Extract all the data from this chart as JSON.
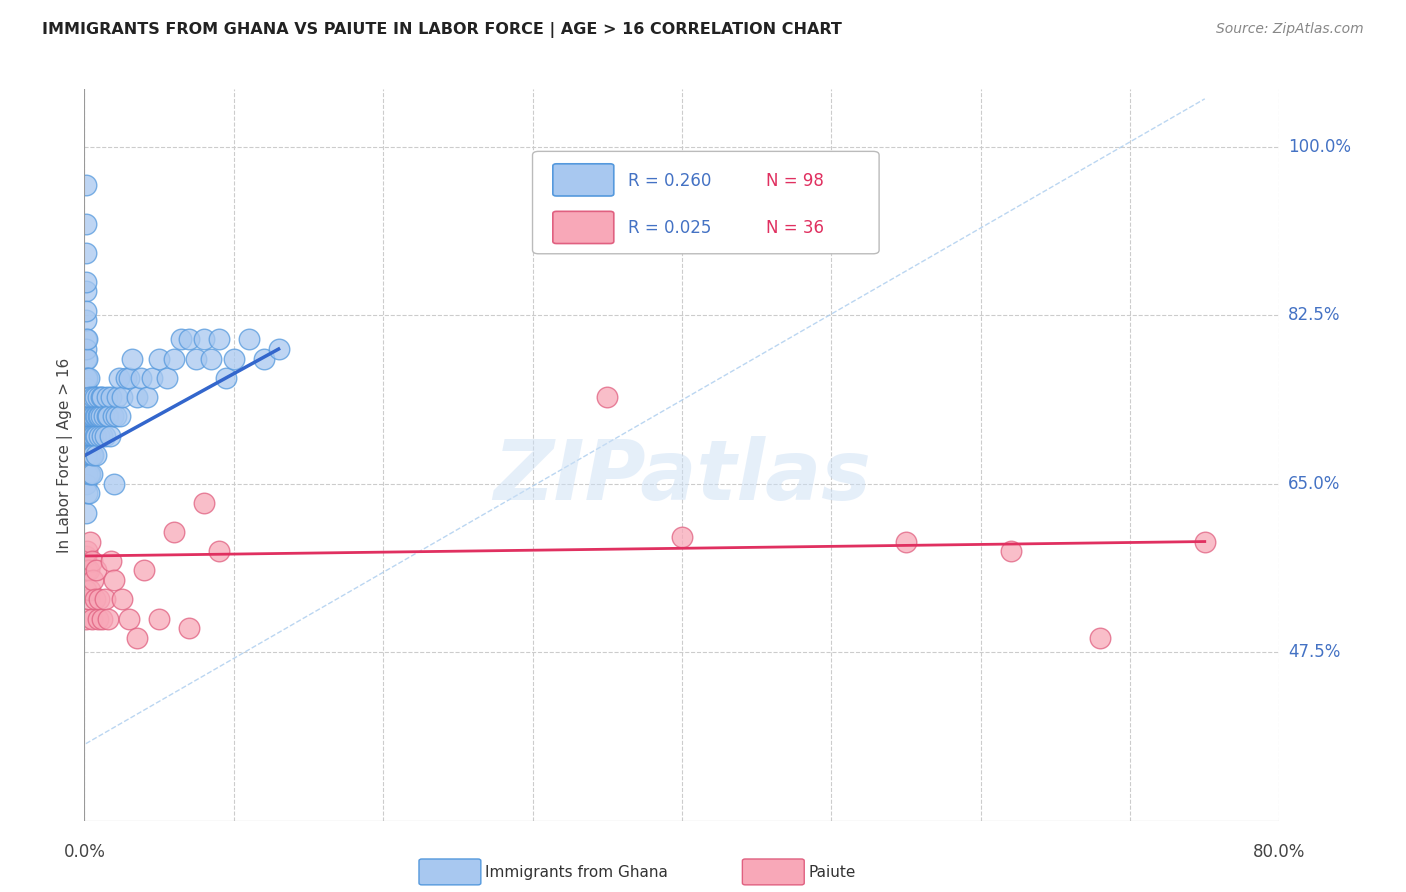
{
  "title": "IMMIGRANTS FROM GHANA VS PAIUTE IN LABOR FORCE | AGE > 16 CORRELATION CHART",
  "source": "Source: ZipAtlas.com",
  "ylabel": "In Labor Force | Age > 16",
  "x_min": 0.0,
  "x_max": 0.8,
  "y_min": 0.3,
  "y_max": 1.06,
  "y_ticks": [
    0.475,
    0.65,
    0.825,
    1.0
  ],
  "y_tick_labels": [
    "47.5%",
    "65.0%",
    "82.5%",
    "100.0%"
  ],
  "x_tick_labels_show": [
    "0.0%",
    "80.0%"
  ],
  "ghana_color": "#a8c8f0",
  "ghana_edge_color": "#5599dd",
  "paiute_color": "#f8a8b8",
  "paiute_edge_color": "#e06080",
  "ghana_line_color": "#3366cc",
  "paiute_line_color": "#e03060",
  "diagonal_color": "#aaccee",
  "watermark": "ZIPatlas",
  "legend_R_ghana": "R = 0.260",
  "legend_N_ghana": "N = 98",
  "legend_R_paiute": "R = 0.025",
  "legend_N_paiute": "N = 36",
  "ghana_label": "Immigrants from Ghana",
  "paiute_label": "Paiute",
  "ghana_scatter_x": [
    0.001,
    0.001,
    0.001,
    0.001,
    0.001,
    0.001,
    0.001,
    0.001,
    0.001,
    0.001,
    0.001,
    0.001,
    0.001,
    0.001,
    0.001,
    0.001,
    0.001,
    0.002,
    0.002,
    0.002,
    0.002,
    0.002,
    0.002,
    0.002,
    0.002,
    0.002,
    0.002,
    0.002,
    0.003,
    0.003,
    0.003,
    0.003,
    0.003,
    0.003,
    0.003,
    0.004,
    0.004,
    0.004,
    0.004,
    0.004,
    0.005,
    0.005,
    0.005,
    0.005,
    0.006,
    0.006,
    0.006,
    0.006,
    0.007,
    0.007,
    0.007,
    0.008,
    0.008,
    0.008,
    0.009,
    0.009,
    0.01,
    0.01,
    0.011,
    0.011,
    0.012,
    0.012,
    0.013,
    0.014,
    0.015,
    0.015,
    0.016,
    0.017,
    0.018,
    0.019,
    0.02,
    0.021,
    0.022,
    0.023,
    0.024,
    0.025,
    0.028,
    0.03,
    0.032,
    0.035,
    0.038,
    0.042,
    0.045,
    0.05,
    0.055,
    0.06,
    0.065,
    0.07,
    0.075,
    0.08,
    0.085,
    0.09,
    0.095,
    0.1,
    0.11,
    0.12,
    0.13,
    0.001
  ],
  "ghana_scatter_y": [
    0.72,
    0.75,
    0.78,
    0.8,
    0.82,
    0.85,
    0.68,
    0.65,
    0.62,
    0.7,
    0.73,
    0.76,
    0.79,
    0.83,
    0.86,
    0.89,
    0.92,
    0.72,
    0.74,
    0.76,
    0.78,
    0.8,
    0.68,
    0.66,
    0.64,
    0.7,
    0.73,
    0.76,
    0.72,
    0.74,
    0.76,
    0.7,
    0.68,
    0.66,
    0.64,
    0.72,
    0.74,
    0.7,
    0.68,
    0.66,
    0.72,
    0.7,
    0.68,
    0.66,
    0.72,
    0.7,
    0.74,
    0.68,
    0.72,
    0.7,
    0.74,
    0.72,
    0.7,
    0.68,
    0.72,
    0.74,
    0.7,
    0.72,
    0.72,
    0.74,
    0.7,
    0.74,
    0.72,
    0.7,
    0.72,
    0.74,
    0.72,
    0.7,
    0.74,
    0.72,
    0.65,
    0.72,
    0.74,
    0.76,
    0.72,
    0.74,
    0.76,
    0.76,
    0.78,
    0.74,
    0.76,
    0.74,
    0.76,
    0.78,
    0.76,
    0.78,
    0.8,
    0.8,
    0.78,
    0.8,
    0.78,
    0.8,
    0.76,
    0.78,
    0.8,
    0.78,
    0.79,
    0.96
  ],
  "paiute_scatter_x": [
    0.001,
    0.001,
    0.001,
    0.002,
    0.002,
    0.003,
    0.003,
    0.004,
    0.004,
    0.005,
    0.005,
    0.006,
    0.007,
    0.008,
    0.009,
    0.01,
    0.012,
    0.014,
    0.016,
    0.018,
    0.02,
    0.025,
    0.03,
    0.035,
    0.04,
    0.05,
    0.06,
    0.07,
    0.08,
    0.09,
    0.35,
    0.4,
    0.55,
    0.62,
    0.68,
    0.75
  ],
  "paiute_scatter_y": [
    0.575,
    0.54,
    0.51,
    0.58,
    0.56,
    0.56,
    0.53,
    0.59,
    0.54,
    0.57,
    0.51,
    0.55,
    0.53,
    0.56,
    0.51,
    0.53,
    0.51,
    0.53,
    0.51,
    0.57,
    0.55,
    0.53,
    0.51,
    0.49,
    0.56,
    0.51,
    0.6,
    0.5,
    0.63,
    0.58,
    0.74,
    0.595,
    0.59,
    0.58,
    0.49,
    0.59
  ],
  "ghana_line_x": [
    0.001,
    0.13
  ],
  "ghana_line_y": [
    0.68,
    0.79
  ],
  "paiute_line_x": [
    0.001,
    0.75
  ],
  "paiute_line_y": [
    0.575,
    0.59
  ],
  "diag_line_x": [
    0.001,
    0.75
  ],
  "diag_line_y": [
    0.38,
    1.05
  ]
}
